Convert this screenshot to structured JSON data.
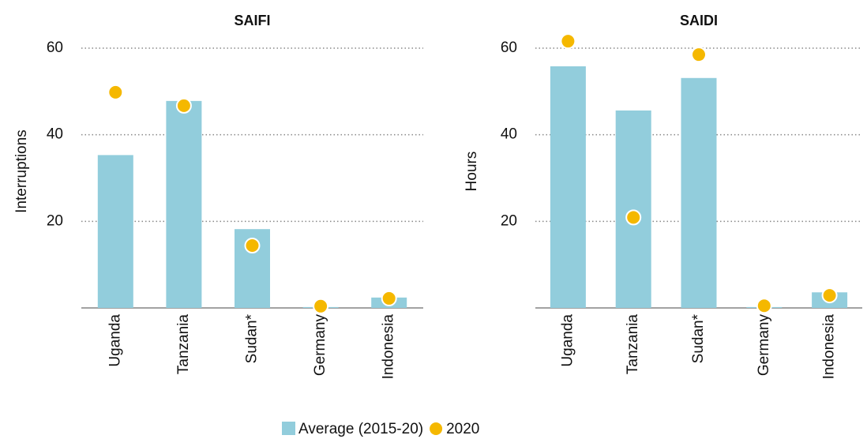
{
  "legend_colors": [
    "#92cddc",
    "#f5b800"
  ],
  "chart_data": [
    {
      "type": "bar_dot",
      "title": "SAIFI",
      "y_label": "Interruptions",
      "categories": [
        "Uganda",
        "Tanzania",
        "Sudan*",
        "Germany",
        "Indonesia"
      ],
      "series": [
        {
          "name": "Average (2015-20)",
          "color": "#92cddc",
          "values": [
            35.3,
            47.8,
            18.2,
            0.2,
            2.4
          ]
        },
        {
          "name": "2020",
          "color": "#f5b800",
          "values": [
            49.8,
            46.7,
            14.4,
            0.4,
            2.2
          ]
        }
      ],
      "ylim": [
        0,
        63
      ],
      "yticks": [
        20,
        40,
        60
      ],
      "grid": true
    },
    {
      "type": "bar_dot",
      "title": "SAIDI",
      "y_label": "Hours",
      "categories": [
        "Uganda",
        "Tanzania",
        "Sudan*",
        "Germany",
        "Indonesia"
      ],
      "series": [
        {
          "color": "#92cddc",
          "values": [
            55.8,
            45.6,
            53.1,
            0.2,
            3.6
          ]
        },
        {
          "color": "#f5b800",
          "values": [
            61.6,
            20.9,
            58.5,
            0.5,
            2.9
          ]
        }
      ],
      "ylim": [
        0,
        63
      ],
      "yticks": [
        20,
        40,
        60
      ],
      "grid": true
    }
  ]
}
